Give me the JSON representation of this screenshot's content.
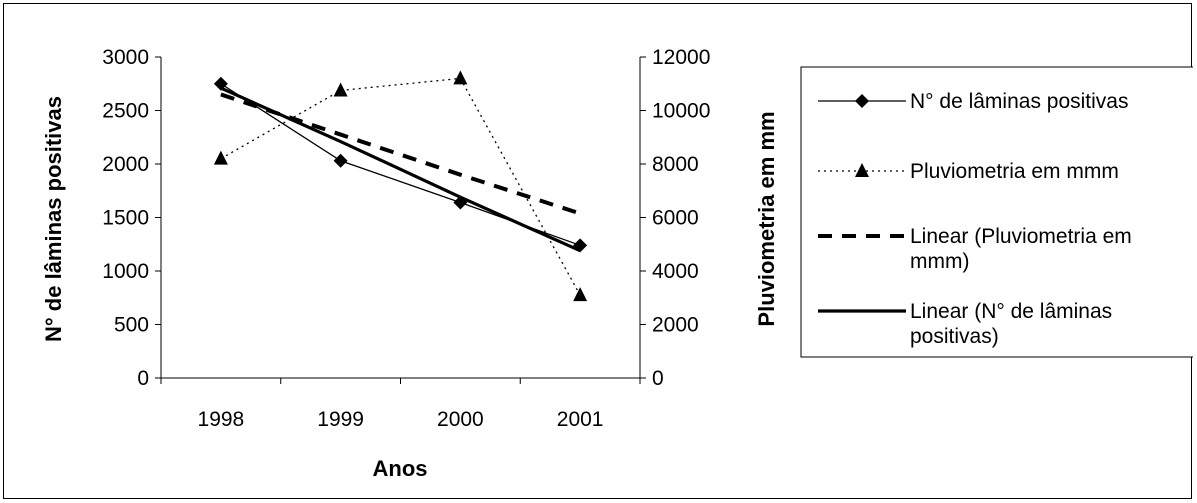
{
  "chart_data": {
    "type": "line",
    "title": "",
    "xlabel": "Anos",
    "ylabel": "N° de lâminas positivas",
    "y2label": "Pluviometria em mm",
    "categories": [
      "1998",
      "1999",
      "2000",
      "2001"
    ],
    "ylim": [
      0,
      3000
    ],
    "y2lim": [
      0,
      12000
    ],
    "yticks": [
      "0",
      "500",
      "1000",
      "1500",
      "2000",
      "2500",
      "3000"
    ],
    "y2ticks": [
      "0",
      "2000",
      "4000",
      "6000",
      "8000",
      "10000",
      "12000"
    ],
    "grid": false,
    "legend_position": "right",
    "series": [
      {
        "name": "N° de lâminas positivas",
        "axis": "left",
        "style": "thin-solid",
        "marker": "diamond",
        "values": [
          2750,
          2030,
          1640,
          1240
        ]
      },
      {
        "name": "Pluviometria em mmm",
        "axis": "right",
        "style": "dotted",
        "marker": "triangle",
        "values": [
          8200,
          10750,
          11200,
          3100
        ]
      },
      {
        "name": "Linear (Pluviometria em mmm)",
        "axis": "right",
        "style": "dashed",
        "marker": "none",
        "values": [
          10600,
          9100,
          7600,
          6150
        ]
      },
      {
        "name": "Linear (N° de lâminas positivas)",
        "axis": "left",
        "style": "thick-solid",
        "marker": "none",
        "values": [
          2710,
          2210,
          1690,
          1190
        ]
      }
    ],
    "legend": [
      {
        "lines": [
          "N° de lâminas positivas"
        ]
      },
      {
        "lines": [
          "Pluviometria em mmm"
        ]
      },
      {
        "lines": [
          "Linear (Pluviometria em",
          "mmm)"
        ]
      },
      {
        "lines": [
          "Linear (N° de lâminas",
          "positivas)"
        ]
      }
    ]
  }
}
